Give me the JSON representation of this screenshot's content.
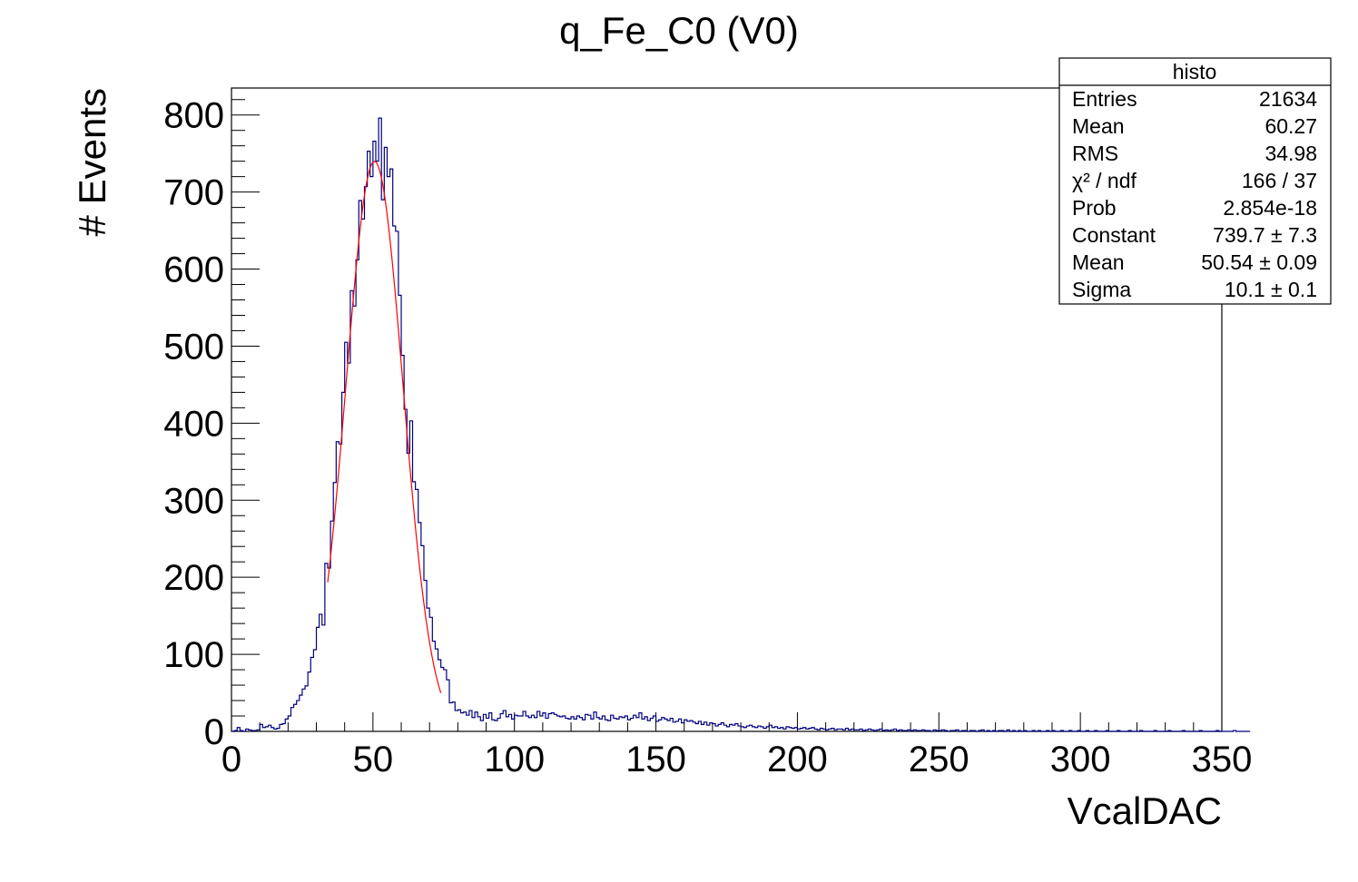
{
  "chart_data": {
    "type": "histogram",
    "title": "q_Fe_C0 (V0)",
    "xlabel": "VcalDAC",
    "ylabel": "# Events",
    "xlim": [
      0,
      350
    ],
    "ylim": [
      0,
      835
    ],
    "x_ticks": [
      "0",
      "50",
      "100",
      "150",
      "200",
      "250",
      "300",
      "350"
    ],
    "y_ticks": [
      "0",
      "100",
      "200",
      "300",
      "400",
      "500",
      "600",
      "700",
      "800"
    ],
    "bin_width": 1,
    "bins_start": 0,
    "counts": [
      0,
      1,
      5,
      1,
      0,
      3,
      2,
      1,
      1,
      2,
      9,
      5,
      6,
      8,
      5,
      3,
      4,
      9,
      10,
      16,
      20,
      31,
      35,
      40,
      47,
      55,
      59,
      77,
      96,
      106,
      135,
      152,
      138,
      218,
      212,
      273,
      323,
      376,
      373,
      440,
      505,
      478,
      572,
      552,
      612,
      689,
      665,
      707,
      753,
      720,
      766,
      740,
      796,
      690,
      758,
      720,
      730,
      656,
      649,
      566,
      488,
      418,
      361,
      403,
      324,
      314,
      271,
      241,
      196,
      160,
      148,
      117,
      107,
      93,
      83,
      80,
      67,
      37,
      38,
      27,
      28,
      24,
      25,
      21,
      27,
      18,
      25,
      19,
      14,
      22,
      17,
      24,
      15,
      14,
      17,
      23,
      27,
      19,
      22,
      16,
      21,
      20,
      20,
      26,
      20,
      18,
      21,
      18,
      26,
      20,
      24,
      17,
      23,
      24,
      22,
      20,
      19,
      20,
      17,
      16,
      19,
      16,
      20,
      18,
      15,
      22,
      21,
      16,
      25,
      18,
      16,
      20,
      15,
      14,
      21,
      17,
      16,
      19,
      18,
      20,
      15,
      17,
      21,
      18,
      24,
      16,
      19,
      14,
      17,
      20,
      13,
      15,
      18,
      16,
      14,
      17,
      12,
      13,
      16,
      11,
      15,
      13,
      14,
      12,
      10,
      13,
      9,
      12,
      8,
      11,
      10,
      7,
      9,
      11,
      8,
      6,
      9,
      8,
      10,
      7,
      6,
      5,
      7,
      8,
      6,
      5,
      7,
      6,
      4,
      6,
      8,
      5,
      6,
      4,
      5,
      3,
      6,
      5,
      4,
      5,
      3,
      4,
      5,
      3,
      4,
      5,
      3,
      2,
      4,
      3,
      2,
      3,
      4,
      2,
      3,
      3,
      2,
      4,
      2,
      3,
      2,
      2,
      3,
      1,
      2,
      3,
      2,
      1,
      2,
      3,
      1,
      2,
      1,
      2,
      3,
      1,
      2,
      1,
      1,
      2,
      1,
      2,
      1,
      1,
      2,
      1,
      1,
      0,
      2,
      1,
      1,
      2,
      1,
      0,
      1,
      1,
      2,
      0,
      1,
      1,
      0,
      1,
      1,
      0,
      1,
      2,
      0,
      1,
      0,
      1,
      0,
      1,
      1,
      0,
      2,
      0,
      1,
      0,
      1,
      0,
      1,
      0,
      0,
      1,
      0,
      1,
      0,
      0,
      1,
      0,
      1,
      0,
      0,
      1,
      0,
      0,
      1,
      0,
      0,
      1,
      0,
      0,
      1,
      0,
      0,
      1,
      0,
      0,
      0,
      1,
      0,
      0,
      0,
      1,
      0,
      0,
      0,
      1,
      0,
      0,
      0,
      1,
      0,
      0,
      0,
      0,
      1,
      0,
      0,
      0,
      0,
      1,
      0,
      0,
      0,
      0,
      1,
      0,
      0,
      0,
      0,
      0,
      1,
      0,
      0,
      0,
      0,
      0,
      1,
      0,
      0,
      0,
      0,
      0,
      1,
      0,
      0,
      0,
      0,
      0
    ],
    "fit": {
      "function": "gaus",
      "constant": 739.7,
      "mean": 50.54,
      "sigma": 10.1,
      "range": [
        34,
        74
      ]
    },
    "colors": {
      "histogram": "#00007f",
      "fit": "#ff0000",
      "frame": "#000000"
    }
  },
  "stats_box": {
    "title": "histo",
    "rows": [
      {
        "label": "Entries",
        "value": "21634"
      },
      {
        "label": "Mean",
        "value": "60.27"
      },
      {
        "label": "RMS",
        "value": "34.98"
      },
      {
        "label": "χ² / ndf",
        "value": "166 / 37"
      },
      {
        "label": "Prob",
        "value": "2.854e-18"
      },
      {
        "label": "Constant",
        "value": "739.7 ± 7.3"
      },
      {
        "label": "Mean",
        "value": "50.54 ± 0.09"
      },
      {
        "label": "Sigma",
        "value": "10.1 ± 0.1"
      }
    ]
  }
}
